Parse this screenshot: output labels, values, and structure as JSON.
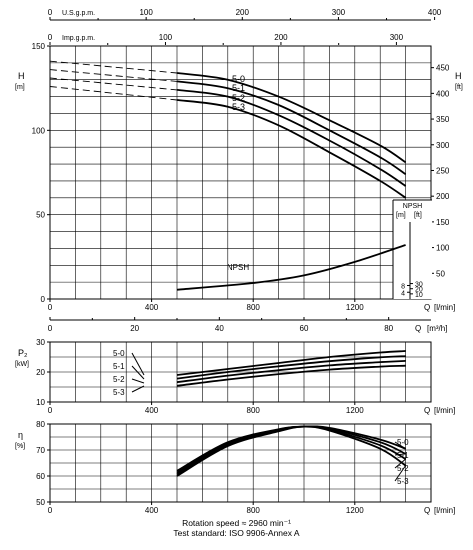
{
  "chart_data": [
    {
      "type": "line",
      "id": "head",
      "ylabel": "H",
      "ylabel_unit": "[m]",
      "ylabel_right": "H",
      "ylabel_right_unit": "[ft]",
      "xlabel": "Q",
      "xlabel_unit": "[l/min]",
      "xlim": [
        0,
        1500
      ],
      "ylim": [
        0,
        150
      ],
      "x_ticks": [
        0,
        400,
        800,
        1200
      ],
      "y_ticks": [
        0,
        50,
        100,
        150
      ],
      "yright_ticks": [
        50,
        100,
        150,
        200,
        250,
        300,
        350,
        400,
        450
      ],
      "top_axis_usgpm": {
        "label": "U.S.g.p.m.",
        "ticks": [
          0,
          100,
          200,
          300,
          400
        ]
      },
      "top_axis_impgpm": {
        "label": "Imp.g.p.m.",
        "ticks": [
          0,
          100,
          200,
          300
        ]
      },
      "grid": true,
      "series": [
        {
          "name": "5-0",
          "x": [
            500,
            700,
            900,
            1100,
            1300,
            1400
          ],
          "y": [
            134,
            130,
            120,
            106,
            91,
            81
          ],
          "dashed_x": [
            0,
            500
          ],
          "dashed_y": [
            141,
            134
          ]
        },
        {
          "name": "5-1",
          "x": [
            500,
            700,
            900,
            1100,
            1300,
            1400
          ],
          "y": [
            129,
            125,
            115,
            100,
            84,
            74
          ],
          "dashed_x": [
            0,
            500
          ],
          "dashed_y": [
            136,
            129
          ]
        },
        {
          "name": "5-2",
          "x": [
            500,
            700,
            900,
            1100,
            1300,
            1400
          ],
          "y": [
            124,
            120,
            109,
            94,
            77,
            67
          ],
          "dashed_x": [
            0,
            500
          ],
          "dashed_y": [
            131,
            124
          ]
        },
        {
          "name": "5-3",
          "x": [
            500,
            700,
            900,
            1100,
            1300,
            1400
          ],
          "y": [
            118,
            114,
            103,
            87,
            70,
            60
          ],
          "dashed_x": [
            0,
            500
          ],
          "dashed_y": [
            126,
            118
          ]
        },
        {
          "name": "NPSH",
          "x": [
            500,
            800,
            1000,
            1200,
            1400
          ],
          "y": [
            5.5,
            9.5,
            14,
            22,
            32
          ]
        }
      ],
      "npsh_axis": {
        "label": "NPSH",
        "m_label": "[m]",
        "ft_label": "[ft]",
        "m_ticks": [
          4,
          8
        ],
        "ft_ticks": [
          10,
          20,
          30
        ]
      }
    },
    {
      "type": "line",
      "id": "flow-m3h",
      "xlabel": "Q",
      "xlabel_unit": "[m³/h]",
      "x_ticks": [
        0,
        20,
        40,
        60,
        80
      ]
    },
    {
      "type": "line",
      "id": "power",
      "ylabel": "P₂",
      "ylabel_unit": "[kW]",
      "xlabel": "Q",
      "xlabel_unit": "[l/min]",
      "xlim": [
        0,
        1500
      ],
      "ylim": [
        10,
        30
      ],
      "x_ticks": [
        0,
        400,
        800,
        1200
      ],
      "y_ticks": [
        10,
        20,
        30
      ],
      "grid": true,
      "series": [
        {
          "name": "5-0",
          "x": [
            500,
            700,
            900,
            1100,
            1300,
            1400
          ],
          "y": [
            19,
            21,
            23,
            25,
            26.5,
            27
          ]
        },
        {
          "name": "5-1",
          "x": [
            500,
            700,
            900,
            1100,
            1300,
            1400
          ],
          "y": [
            17.8,
            20,
            21.9,
            23.6,
            24.9,
            25.3
          ]
        },
        {
          "name": "5-2",
          "x": [
            500,
            700,
            900,
            1100,
            1300,
            1400
          ],
          "y": [
            16.6,
            18.8,
            20.6,
            22.2,
            23.3,
            23.7
          ]
        },
        {
          "name": "5-3",
          "x": [
            500,
            700,
            900,
            1100,
            1300,
            1400
          ],
          "y": [
            15.4,
            17.5,
            19.3,
            20.8,
            21.8,
            22.1
          ]
        }
      ]
    },
    {
      "type": "line",
      "id": "efficiency",
      "ylabel": "η",
      "ylabel_unit": "[%]",
      "xlabel": "Q",
      "xlabel_unit": "[l/min]",
      "xlim": [
        0,
        1500
      ],
      "ylim": [
        50,
        80
      ],
      "x_ticks": [
        0,
        400,
        800,
        1200
      ],
      "y_ticks": [
        50,
        60,
        70,
        80
      ],
      "grid": true,
      "series": [
        {
          "name": "5-0",
          "x": [
            500,
            700,
            900,
            1000,
            1100,
            1300,
            1400
          ],
          "y": [
            62,
            73,
            78,
            79,
            78.5,
            74,
            70.5
          ]
        },
        {
          "name": "5-1",
          "x": [
            500,
            700,
            900,
            1000,
            1100,
            1300,
            1400
          ],
          "y": [
            61.3,
            72.5,
            77.8,
            79,
            78.2,
            73,
            68.5
          ]
        },
        {
          "name": "5-2",
          "x": [
            500,
            700,
            900,
            1000,
            1100,
            1300,
            1400
          ],
          "y": [
            60.6,
            72,
            77.5,
            79,
            77.8,
            71.8,
            66.5
          ]
        },
        {
          "name": "5-3",
          "x": [
            500,
            700,
            900,
            1000,
            1100,
            1300,
            1400
          ],
          "y": [
            60,
            71.5,
            77.2,
            79,
            77.5,
            70.5,
            64
          ]
        }
      ]
    }
  ],
  "footer": {
    "line1": "Rotation speed ≈ 2960 min⁻¹",
    "line2": "Test standard: ISO 9906-Annex A"
  }
}
